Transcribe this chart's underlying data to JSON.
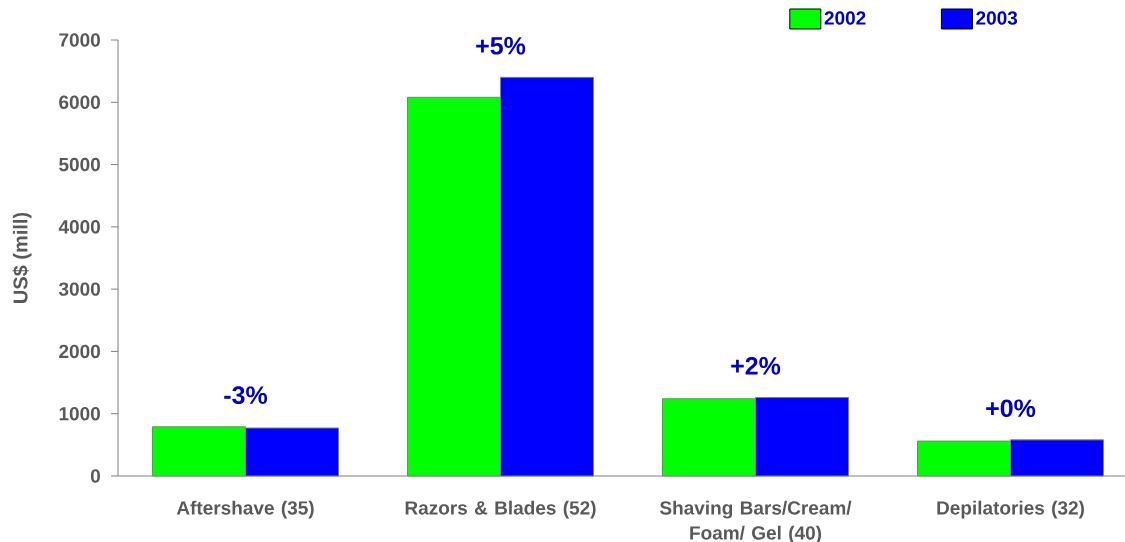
{
  "chart_data": {
    "type": "bar",
    "ylabel": "US$ (mill)",
    "categories": [
      "Aftershave (35)",
      "Razors & Blades (52)",
      "Shaving Bars/Cream/ Foam/ Gel (40)",
      "Depilatories (32)"
    ],
    "series": [
      {
        "name": "2002",
        "color": "#00ff00",
        "values": [
          790,
          6080,
          1240,
          560
        ]
      },
      {
        "name": "2003",
        "color": "#0000ff",
        "values": [
          770,
          6400,
          1260,
          580
        ]
      }
    ],
    "ylim": [
      0,
      7000
    ],
    "yticks": [
      0,
      1000,
      2000,
      3000,
      4000,
      5000,
      6000,
      7000
    ],
    "annotations": [
      {
        "text": "-3%",
        "x": "Aftershave (35)",
        "y": 790
      },
      {
        "text": "+5%",
        "x": "Razors & Blades (52)",
        "y": 6400
      },
      {
        "text": "+2%",
        "x": "Shaving Bars/Cream/ Foam/ Gel (40)",
        "y": 1260
      },
      {
        "text": "+0%",
        "x": "Depilatories (32)",
        "y": 580
      }
    ],
    "legend": "top right"
  }
}
